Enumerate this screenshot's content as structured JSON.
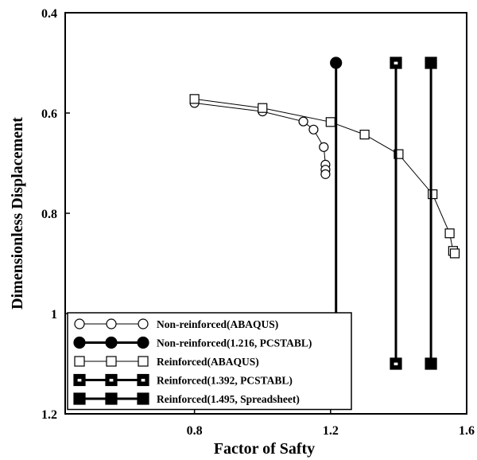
{
  "chart_data": {
    "type": "line",
    "xlabel": "Factor of Safty",
    "ylabel": "Dimensionless Displacement",
    "xlim": [
      0.42,
      1.6
    ],
    "ylim": [
      1.2,
      0.4
    ],
    "y_inverted": true,
    "x_ticks": [
      "0.8",
      "1.2",
      "1.6"
    ],
    "y_ticks": [
      "0.4",
      "0.6",
      "0.8",
      "1",
      "1.2"
    ],
    "grid": false,
    "legend_position": "bottom-left",
    "series": [
      {
        "name": "Non-reinforced(ABAQUS)",
        "marker": "circle-open",
        "line": "thin",
        "color": "#000000",
        "points": [
          [
            0.8,
            0.58
          ],
          [
            1.0,
            0.597
          ],
          [
            1.12,
            0.617
          ],
          [
            1.15,
            0.633
          ],
          [
            1.18,
            0.668
          ],
          [
            1.185,
            0.703
          ],
          [
            1.185,
            0.713
          ],
          [
            1.185,
            0.722
          ]
        ]
      },
      {
        "name": "Non-reinforced(1.216, PCSTABL)",
        "marker": "circle-filled",
        "line": "thick",
        "color": "#000000",
        "points": [
          [
            1.216,
            0.5
          ],
          [
            1.216,
            1.1
          ]
        ]
      },
      {
        "name": "Reinforced(ABAQUS)",
        "marker": "square-open",
        "line": "thin",
        "color": "#000000",
        "points": [
          [
            0.8,
            0.572
          ],
          [
            1.0,
            0.59
          ],
          [
            1.2,
            0.618
          ],
          [
            1.3,
            0.643
          ],
          [
            1.4,
            0.682
          ],
          [
            1.5,
            0.762
          ],
          [
            1.55,
            0.84
          ],
          [
            1.56,
            0.875
          ],
          [
            1.565,
            0.88
          ]
        ]
      },
      {
        "name": "Reinforced(1.392, PCSTABL)",
        "marker": "square-dotted",
        "line": "thick",
        "color": "#000000",
        "points": [
          [
            1.392,
            0.5
          ],
          [
            1.392,
            1.1
          ]
        ]
      },
      {
        "name": "Reinforced(1.495, Spreadsheet)",
        "marker": "square-filled",
        "line": "thick",
        "color": "#000000",
        "points": [
          [
            1.495,
            0.5
          ],
          [
            1.495,
            1.1
          ]
        ]
      }
    ]
  }
}
